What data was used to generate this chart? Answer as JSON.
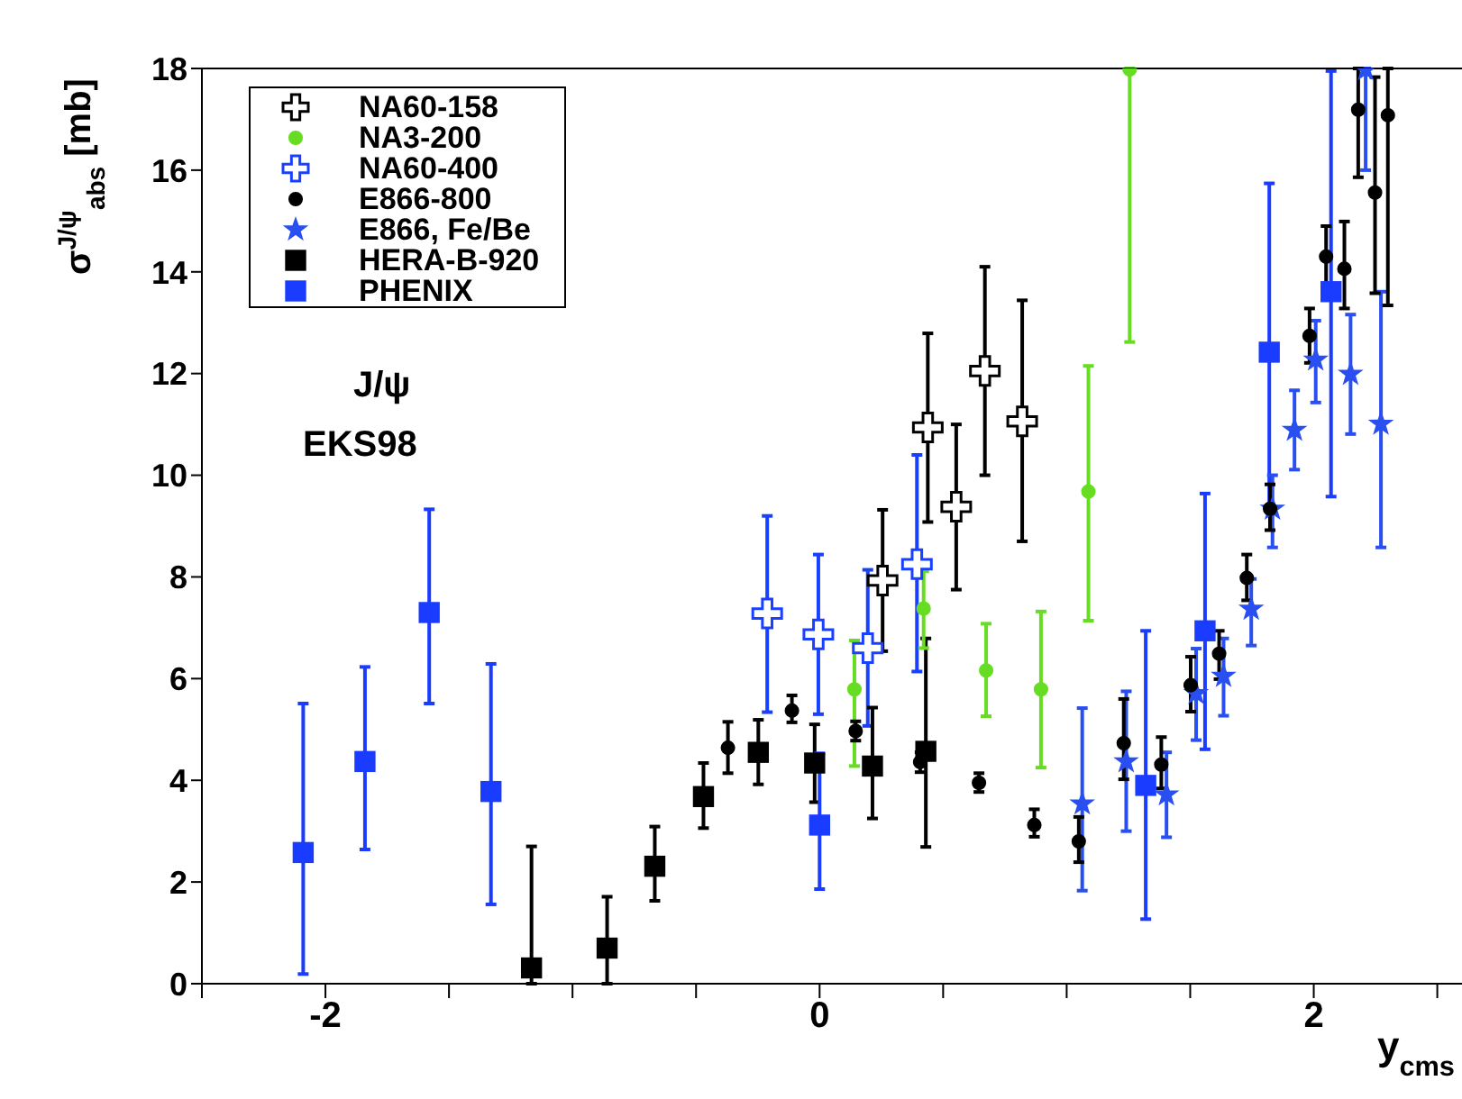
{
  "chart_data": {
    "type": "scatter",
    "xlabel": "y$_{cms}$",
    "ylabel": "σ$^{J/ψ}$$_{abs}$ [mb]",
    "annotations": [
      "J/ψ",
      "EKS98"
    ],
    "xlim": [
      -2.5,
      2.6
    ],
    "xticks": [
      {
        "value": -2.5,
        "label": null
      },
      -2,
      {
        "value": -1.5,
        "label": null
      },
      {
        "value": -1,
        "label": null
      },
      {
        "value": -0.5,
        "label": null
      },
      0,
      {
        "value": 0.5,
        "label": null
      },
      {
        "value": 1,
        "label": null
      },
      {
        "value": 1.5,
        "label": null
      },
      2,
      {
        "value": 2.5,
        "label": null
      }
    ],
    "ylim": [
      0,
      18
    ],
    "yticks": [
      0,
      2,
      4,
      6,
      8,
      10,
      12,
      14,
      16,
      18
    ],
    "legend": "top left",
    "series": [
      {
        "name": "NA60-158",
        "color": "#000000",
        "marker": "cross",
        "x": [
          0.255,
          0.438,
          0.553,
          0.669,
          0.82
        ],
        "values": [
          7.93,
          10.94,
          9.38,
          12.05,
          11.06
        ],
        "errors": [
          [
            6.54,
            9.32
          ],
          [
            9.08,
            12.79
          ],
          [
            7.75,
            11.0
          ],
          [
            10.0,
            14.1
          ],
          [
            8.7,
            13.44
          ]
        ]
      },
      {
        "name": "NA3-200",
        "color": "#66dd22",
        "marker": "circle",
        "x": [
          0.141,
          0.421,
          0.674,
          0.896,
          1.088,
          1.255
        ],
        "values": [
          5.79,
          7.38,
          6.16,
          5.79,
          9.68,
          17.98
        ],
        "errors": [
          [
            4.28,
            6.75
          ],
          [
            6.6,
            8.11
          ],
          [
            5.26,
            7.08
          ],
          [
            4.25,
            7.32
          ],
          [
            7.14,
            12.15
          ],
          [
            12.62,
            18
          ]
        ]
      },
      {
        "name": "NA60-400",
        "color": "#1a40ff",
        "marker": "cross",
        "x": [
          -0.212,
          -0.005,
          0.195,
          0.394
        ],
        "values": [
          7.28,
          6.87,
          6.6,
          8.25
        ],
        "errors": [
          [
            5.34,
            9.2
          ],
          [
            5.3,
            8.44
          ],
          [
            5.07,
            8.14
          ],
          [
            6.14,
            10.4
          ]
        ]
      },
      {
        "name": "E866-800",
        "color": "#000000",
        "marker": "circle",
        "x": [
          -0.371,
          -0.112,
          0.146,
          0.407,
          0.645,
          0.869,
          1.049,
          1.231,
          1.383,
          1.502,
          1.617,
          1.729,
          1.823,
          1.983,
          2.05,
          2.124,
          2.18,
          2.248,
          2.3
        ],
        "values": [
          4.64,
          5.37,
          4.97,
          4.36,
          3.95,
          3.12,
          2.8,
          4.73,
          4.31,
          5.87,
          6.49,
          7.98,
          9.34,
          12.74,
          14.3,
          14.06,
          17.19,
          15.56,
          17.08
        ],
        "errors": [
          [
            4.14,
            5.15
          ],
          [
            5.14,
            5.67
          ],
          [
            4.78,
            5.16
          ],
          [
            4.16,
            4.55
          ],
          [
            3.77,
            4.14
          ],
          [
            2.89,
            3.43
          ],
          [
            2.39,
            3.28
          ],
          [
            4.02,
            5.6
          ],
          [
            3.84,
            4.85
          ],
          [
            5.35,
            6.43
          ],
          [
            5.99,
            6.94
          ],
          [
            7.54,
            8.44
          ],
          [
            8.92,
            9.82
          ],
          [
            12.21,
            13.28
          ],
          [
            13.46,
            14.9
          ],
          [
            13.28,
            14.99
          ],
          [
            15.86,
            18
          ],
          [
            13.58,
            17.83
          ],
          [
            13.34,
            18
          ]
        ]
      },
      {
        "name": "E866, Fe/Be",
        "color": "#2a4ff0",
        "marker": "star",
        "x": [
          1.063,
          1.241,
          1.404,
          1.524,
          1.635,
          1.747,
          1.833,
          1.922,
          2.008,
          2.149,
          2.21,
          2.272
        ],
        "values": [
          3.54,
          4.37,
          3.72,
          5.71,
          6.05,
          7.37,
          9.34,
          10.89,
          12.27,
          11.99,
          17.98,
          11.01
        ],
        "errors": [
          [
            1.83,
            5.42
          ],
          [
            3.0,
            5.75
          ],
          [
            2.88,
            4.55
          ],
          [
            4.79,
            6.59
          ],
          [
            5.27,
            6.79
          ],
          [
            6.65,
            7.96
          ],
          [
            8.58,
            10.0
          ],
          [
            10.11,
            11.67
          ],
          [
            11.43,
            13.04
          ],
          [
            10.81,
            13.16
          ],
          [
            16.0,
            18
          ],
          [
            8.58,
            13.61
          ]
        ]
      },
      {
        "name": "HERA-B-920",
        "color": "#000000",
        "marker": "square",
        "x": [
          -1.166,
          -0.86,
          -0.667,
          -0.47,
          -0.248,
          -0.02,
          0.214,
          0.43
        ],
        "values": [
          0.31,
          0.7,
          2.31,
          3.68,
          4.55,
          4.34,
          4.28,
          4.57
        ],
        "errors": [
          [
            0,
            2.7
          ],
          [
            0,
            1.71
          ],
          [
            1.63,
            3.09
          ],
          [
            3.06,
            4.34
          ],
          [
            3.92,
            5.19
          ],
          [
            3.57,
            5.1
          ],
          [
            3.25,
            5.43
          ],
          [
            2.69,
            6.79
          ]
        ]
      },
      {
        "name": "PHENIX",
        "color": "#1a3cff",
        "marker": "square",
        "x": [
          -2.09,
          -1.84,
          -1.58,
          -1.33,
          0.0,
          1.32,
          1.56,
          1.82,
          2.07
        ],
        "values": [
          2.58,
          4.37,
          7.3,
          3.78,
          3.12,
          3.9,
          6.94,
          12.42,
          13.61
        ],
        "errors": [
          [
            0.19,
            5.51
          ],
          [
            2.64,
            6.23
          ],
          [
            5.51,
            9.33
          ],
          [
            1.56,
            6.29
          ],
          [
            1.86,
            4.53
          ],
          [
            1.27,
            6.94
          ],
          [
            4.61,
            9.64
          ],
          [
            9.34,
            15.74
          ],
          [
            9.58,
            17.95
          ]
        ]
      }
    ]
  }
}
